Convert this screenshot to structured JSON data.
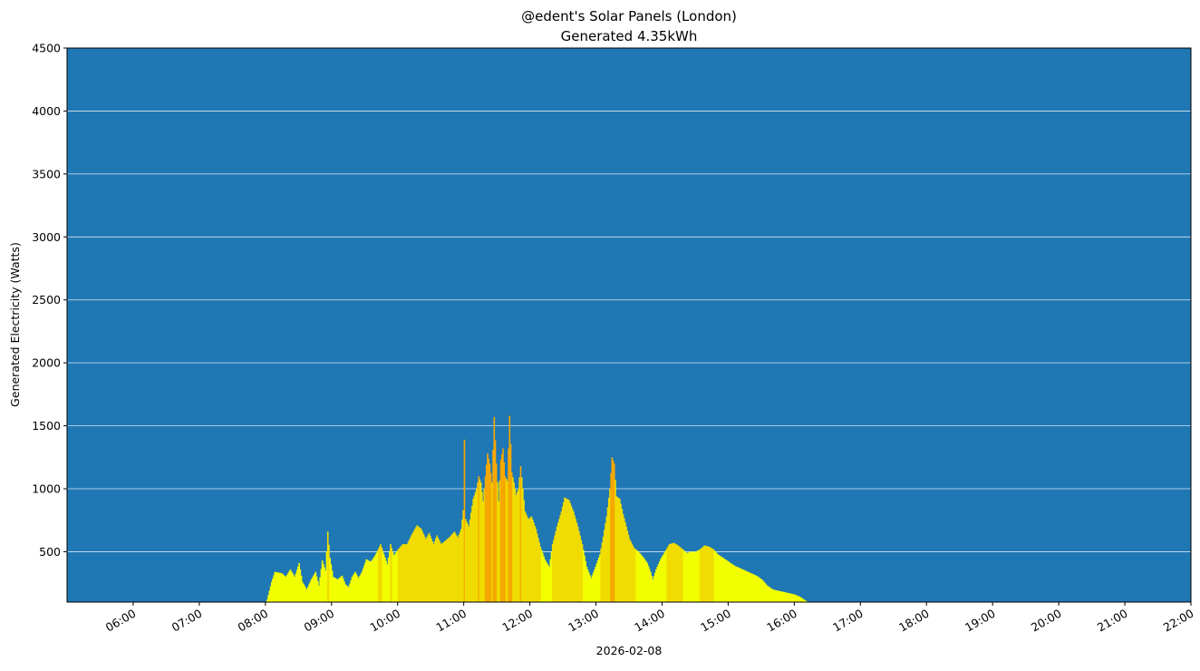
{
  "chart_data": {
    "type": "bar",
    "title": "@edent's Solar Panels (London)",
    "subtitle": "Generated 4.35kWh",
    "xlabel": "2026-02-08",
    "ylabel": "Generated Electricity (Watts)",
    "ylim": [
      100,
      4500
    ],
    "xlim": [
      "05:00",
      "22:00"
    ],
    "y_ticks": [
      "500",
      "1000",
      "1500",
      "2000",
      "2500",
      "3000",
      "3500",
      "4000",
      "4500"
    ],
    "x_ticks": [
      "06:00",
      "07:00",
      "08:00",
      "09:00",
      "10:00",
      "11:00",
      "12:00",
      "13:00",
      "14:00",
      "15:00",
      "16:00",
      "17:00",
      "18:00",
      "19:00",
      "20:00",
      "21:00",
      "22:00"
    ],
    "grid": "horizontal",
    "colors": {
      "background": "#1f77b4",
      "grid": "#d9e6f2",
      "low": "#f2ff00",
      "mid": "#f0dc00",
      "high": "#f5a800"
    },
    "series_profile": [
      [
        "08:00",
        0
      ],
      [
        "08:01",
        120
      ],
      [
        "08:05",
        260
      ],
      [
        "08:08",
        340
      ],
      [
        "08:14",
        330
      ],
      [
        "08:18",
        300
      ],
      [
        "08:22",
        360
      ],
      [
        "08:26",
        300
      ],
      [
        "08:30",
        410
      ],
      [
        "08:33",
        260
      ],
      [
        "08:37",
        200
      ],
      [
        "08:41",
        280
      ],
      [
        "08:45",
        340
      ],
      [
        "08:48",
        230
      ],
      [
        "08:51",
        430
      ],
      [
        "08:54",
        350
      ],
      [
        "08:56",
        660
      ],
      [
        "08:58",
        450
      ],
      [
        "09:01",
        300
      ],
      [
        "09:05",
        280
      ],
      [
        "09:09",
        310
      ],
      [
        "09:12",
        240
      ],
      [
        "09:15",
        220
      ],
      [
        "09:18",
        300
      ],
      [
        "09:21",
        340
      ],
      [
        "09:24",
        290
      ],
      [
        "09:27",
        340
      ],
      [
        "09:31",
        440
      ],
      [
        "09:35",
        420
      ],
      [
        "09:39",
        470
      ],
      [
        "09:44",
        560
      ],
      [
        "09:47",
        480
      ],
      [
        "09:50",
        400
      ],
      [
        "09:53",
        560
      ],
      [
        "09:56",
        470
      ],
      [
        "10:00",
        520
      ],
      [
        "10:04",
        560
      ],
      [
        "10:08",
        560
      ],
      [
        "10:13",
        650
      ],
      [
        "10:17",
        710
      ],
      [
        "10:21",
        680
      ],
      [
        "10:25",
        600
      ],
      [
        "10:28",
        650
      ],
      [
        "10:32",
        560
      ],
      [
        "10:35",
        630
      ],
      [
        "10:39",
        560
      ],
      [
        "10:43",
        590
      ],
      [
        "10:47",
        620
      ],
      [
        "10:51",
        660
      ],
      [
        "10:54",
        610
      ],
      [
        "10:57",
        680
      ],
      [
        "10:59",
        830
      ],
      [
        "11:00",
        1390
      ],
      [
        "11:01",
        760
      ],
      [
        "11:04",
        700
      ],
      [
        "11:08",
        920
      ],
      [
        "11:11",
        1000
      ],
      [
        "11:13",
        1100
      ],
      [
        "11:15",
        1050
      ],
      [
        "11:17",
        900
      ],
      [
        "11:19",
        1100
      ],
      [
        "11:21",
        1280
      ],
      [
        "11:23",
        1200
      ],
      [
        "11:25",
        1050
      ],
      [
        "11:27",
        1570
      ],
      [
        "11:29",
        1200
      ],
      [
        "11:31",
        900
      ],
      [
        "11:33",
        1230
      ],
      [
        "11:35",
        1320
      ],
      [
        "11:37",
        1100
      ],
      [
        "11:39",
        1060
      ],
      [
        "11:41",
        1580
      ],
      [
        "11:43",
        1130
      ],
      [
        "11:45",
        1050
      ],
      [
        "11:47",
        950
      ],
      [
        "11:49",
        1000
      ],
      [
        "11:51",
        1180
      ],
      [
        "11:53",
        1000
      ],
      [
        "11:55",
        820
      ],
      [
        "11:58",
        760
      ],
      [
        "12:01",
        780
      ],
      [
        "12:05",
        680
      ],
      [
        "12:09",
        540
      ],
      [
        "12:13",
        440
      ],
      [
        "12:17",
        380
      ],
      [
        "12:20",
        560
      ],
      [
        "12:24",
        700
      ],
      [
        "12:28",
        820
      ],
      [
        "12:31",
        930
      ],
      [
        "12:35",
        910
      ],
      [
        "12:39",
        820
      ],
      [
        "12:43",
        700
      ],
      [
        "12:47",
        560
      ],
      [
        "12:51",
        380
      ],
      [
        "12:55",
        290
      ],
      [
        "12:59",
        380
      ],
      [
        "13:03",
        480
      ],
      [
        "13:06",
        620
      ],
      [
        "13:09",
        780
      ],
      [
        "13:12",
        1000
      ],
      [
        "13:14",
        1250
      ],
      [
        "13:16",
        1200
      ],
      [
        "13:18",
        940
      ],
      [
        "13:21",
        920
      ],
      [
        "13:24",
        800
      ],
      [
        "13:27",
        700
      ],
      [
        "13:30",
        600
      ],
      [
        "13:34",
        530
      ],
      [
        "13:38",
        500
      ],
      [
        "13:42",
        460
      ],
      [
        "13:46",
        410
      ],
      [
        "13:49",
        340
      ],
      [
        "13:51",
        280
      ],
      [
        "13:54",
        360
      ],
      [
        "13:58",
        440
      ],
      [
        "14:02",
        500
      ],
      [
        "14:06",
        560
      ],
      [
        "14:10",
        570
      ],
      [
        "14:14",
        550
      ],
      [
        "14:18",
        520
      ],
      [
        "14:22",
        490
      ],
      [
        "14:26",
        500
      ],
      [
        "14:30",
        500
      ],
      [
        "14:34",
        520
      ],
      [
        "14:38",
        550
      ],
      [
        "14:42",
        540
      ],
      [
        "14:46",
        520
      ],
      [
        "14:50",
        480
      ],
      [
        "14:55",
        450
      ],
      [
        "15:00",
        420
      ],
      [
        "15:05",
        390
      ],
      [
        "15:10",
        370
      ],
      [
        "15:15",
        350
      ],
      [
        "15:20",
        330
      ],
      [
        "15:25",
        310
      ],
      [
        "15:30",
        280
      ],
      [
        "15:35",
        230
      ],
      [
        "15:40",
        200
      ],
      [
        "15:45",
        190
      ],
      [
        "15:50",
        180
      ],
      [
        "15:55",
        170
      ],
      [
        "16:00",
        160
      ],
      [
        "16:05",
        140
      ],
      [
        "16:10",
        110
      ],
      [
        "16:15",
        90
      ],
      [
        "16:18",
        0
      ]
    ]
  }
}
